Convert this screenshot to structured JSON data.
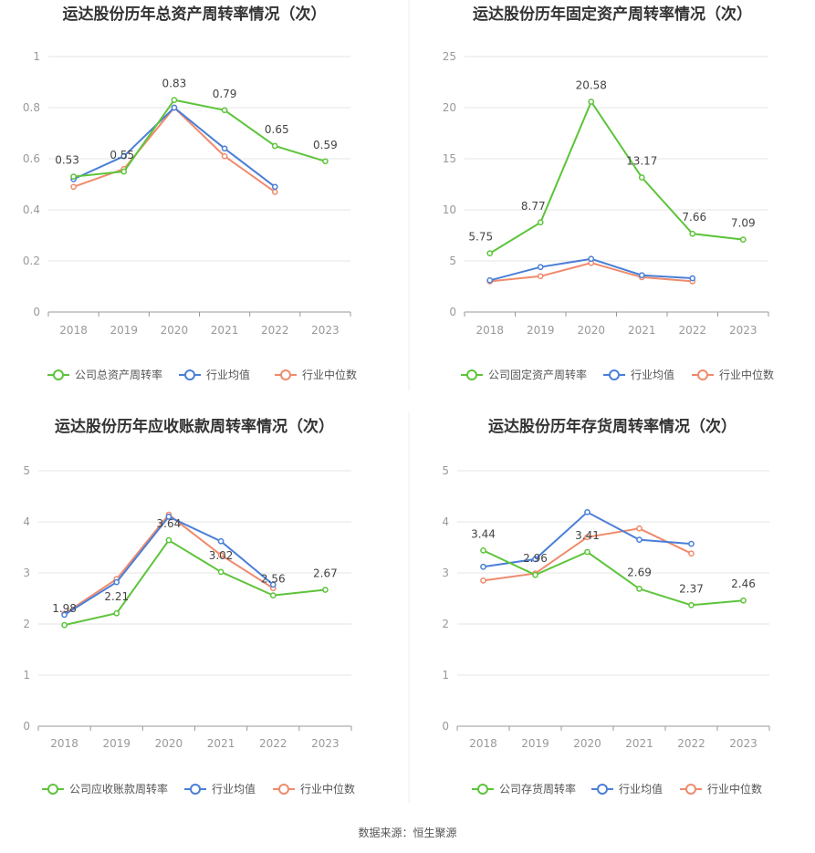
{
  "chart_data": [
    {
      "type": "line",
      "title": "运达股份历年总资产周转率情况（次）",
      "categories": [
        "2018",
        "2019",
        "2020",
        "2021",
        "2022",
        "2023"
      ],
      "ylim": [
        0,
        1
      ],
      "yticks": [
        "0",
        "0.2",
        "0.4",
        "0.6",
        "0.8",
        "1"
      ],
      "ytick_values": [
        0,
        0.2,
        0.4,
        0.6,
        0.8,
        1
      ],
      "grid": true,
      "legend_position": "bottom",
      "series": [
        {
          "name": "公司总资产周转率",
          "color": "#5dc43a",
          "values": [
            0.53,
            0.55,
            0.83,
            0.79,
            0.65,
            0.59
          ],
          "labels": [
            "0.53",
            "0.55",
            "0.83",
            "0.79",
            "0.65",
            "0.59"
          ]
        },
        {
          "name": "行业均值",
          "color": "#4a7fd8",
          "values": [
            0.52,
            0.61,
            0.8,
            0.64,
            0.49,
            null
          ]
        },
        {
          "name": "行业中位数",
          "color": "#f08a6c",
          "values": [
            0.49,
            0.56,
            0.8,
            0.61,
            0.47,
            null
          ]
        }
      ]
    },
    {
      "type": "line",
      "title": "运达股份历年固定资产周转率情况（次）",
      "categories": [
        "2018",
        "2019",
        "2020",
        "2021",
        "2022",
        "2023"
      ],
      "ylim": [
        0,
        25
      ],
      "yticks": [
        "0",
        "5",
        "10",
        "15",
        "20",
        "25"
      ],
      "ytick_values": [
        0,
        5,
        10,
        15,
        20,
        25
      ],
      "grid": true,
      "legend_position": "bottom",
      "series": [
        {
          "name": "公司固定资产周转率",
          "color": "#5dc43a",
          "values": [
            5.75,
            8.77,
            20.58,
            13.17,
            7.66,
            7.09
          ],
          "labels": [
            "5.75",
            "8.77",
            "20.58",
            "13.17",
            "7.66",
            "7.09"
          ]
        },
        {
          "name": "行业均值",
          "color": "#4a7fd8",
          "values": [
            3.1,
            4.4,
            5.2,
            3.6,
            3.3,
            null
          ]
        },
        {
          "name": "行业中位数",
          "color": "#f08a6c",
          "values": [
            3.0,
            3.5,
            4.8,
            3.4,
            3.0,
            null
          ]
        }
      ]
    },
    {
      "type": "line",
      "title": "运达股份历年应收账款周转率情况（次）",
      "categories": [
        "2018",
        "2019",
        "2020",
        "2021",
        "2022",
        "2023"
      ],
      "ylim": [
        0,
        5
      ],
      "yticks": [
        "0",
        "1",
        "2",
        "3",
        "4",
        "5"
      ],
      "ytick_values": [
        0,
        1,
        2,
        3,
        4,
        5
      ],
      "grid": true,
      "legend_position": "bottom",
      "series": [
        {
          "name": "公司应收账款周转率",
          "color": "#5dc43a",
          "values": [
            1.98,
            2.21,
            3.64,
            3.02,
            2.56,
            2.67
          ],
          "labels": [
            "1.98",
            "2.21",
            "3.64",
            "3.02",
            "2.56",
            "2.67"
          ]
        },
        {
          "name": "行业均值",
          "color": "#4a7fd8",
          "values": [
            2.18,
            2.82,
            4.1,
            3.62,
            2.77,
            null
          ]
        },
        {
          "name": "行业中位数",
          "color": "#f08a6c",
          "values": [
            2.2,
            2.88,
            4.14,
            3.35,
            2.7,
            null
          ]
        }
      ]
    },
    {
      "type": "line",
      "title": "运达股份历年存货周转率情况（次）",
      "categories": [
        "2018",
        "2019",
        "2020",
        "2021",
        "2022",
        "2023"
      ],
      "ylim": [
        0,
        5
      ],
      "yticks": [
        "0",
        "1",
        "2",
        "3",
        "4",
        "5"
      ],
      "ytick_values": [
        0,
        1,
        2,
        3,
        4,
        5
      ],
      "grid": true,
      "legend_position": "bottom",
      "series": [
        {
          "name": "公司存货周转率",
          "color": "#5dc43a",
          "values": [
            3.44,
            2.96,
            3.41,
            2.69,
            2.37,
            2.46
          ],
          "labels": [
            "3.44",
            "2.96",
            "3.41",
            "2.69",
            "2.37",
            "2.46"
          ]
        },
        {
          "name": "行业均值",
          "color": "#4a7fd8",
          "values": [
            3.12,
            3.27,
            4.19,
            3.65,
            3.57,
            null
          ]
        },
        {
          "name": "行业中位数",
          "color": "#f08a6c",
          "values": [
            2.85,
            2.99,
            3.7,
            3.87,
            3.38,
            null
          ]
        }
      ]
    }
  ],
  "source": "数据来源：恒生聚源"
}
